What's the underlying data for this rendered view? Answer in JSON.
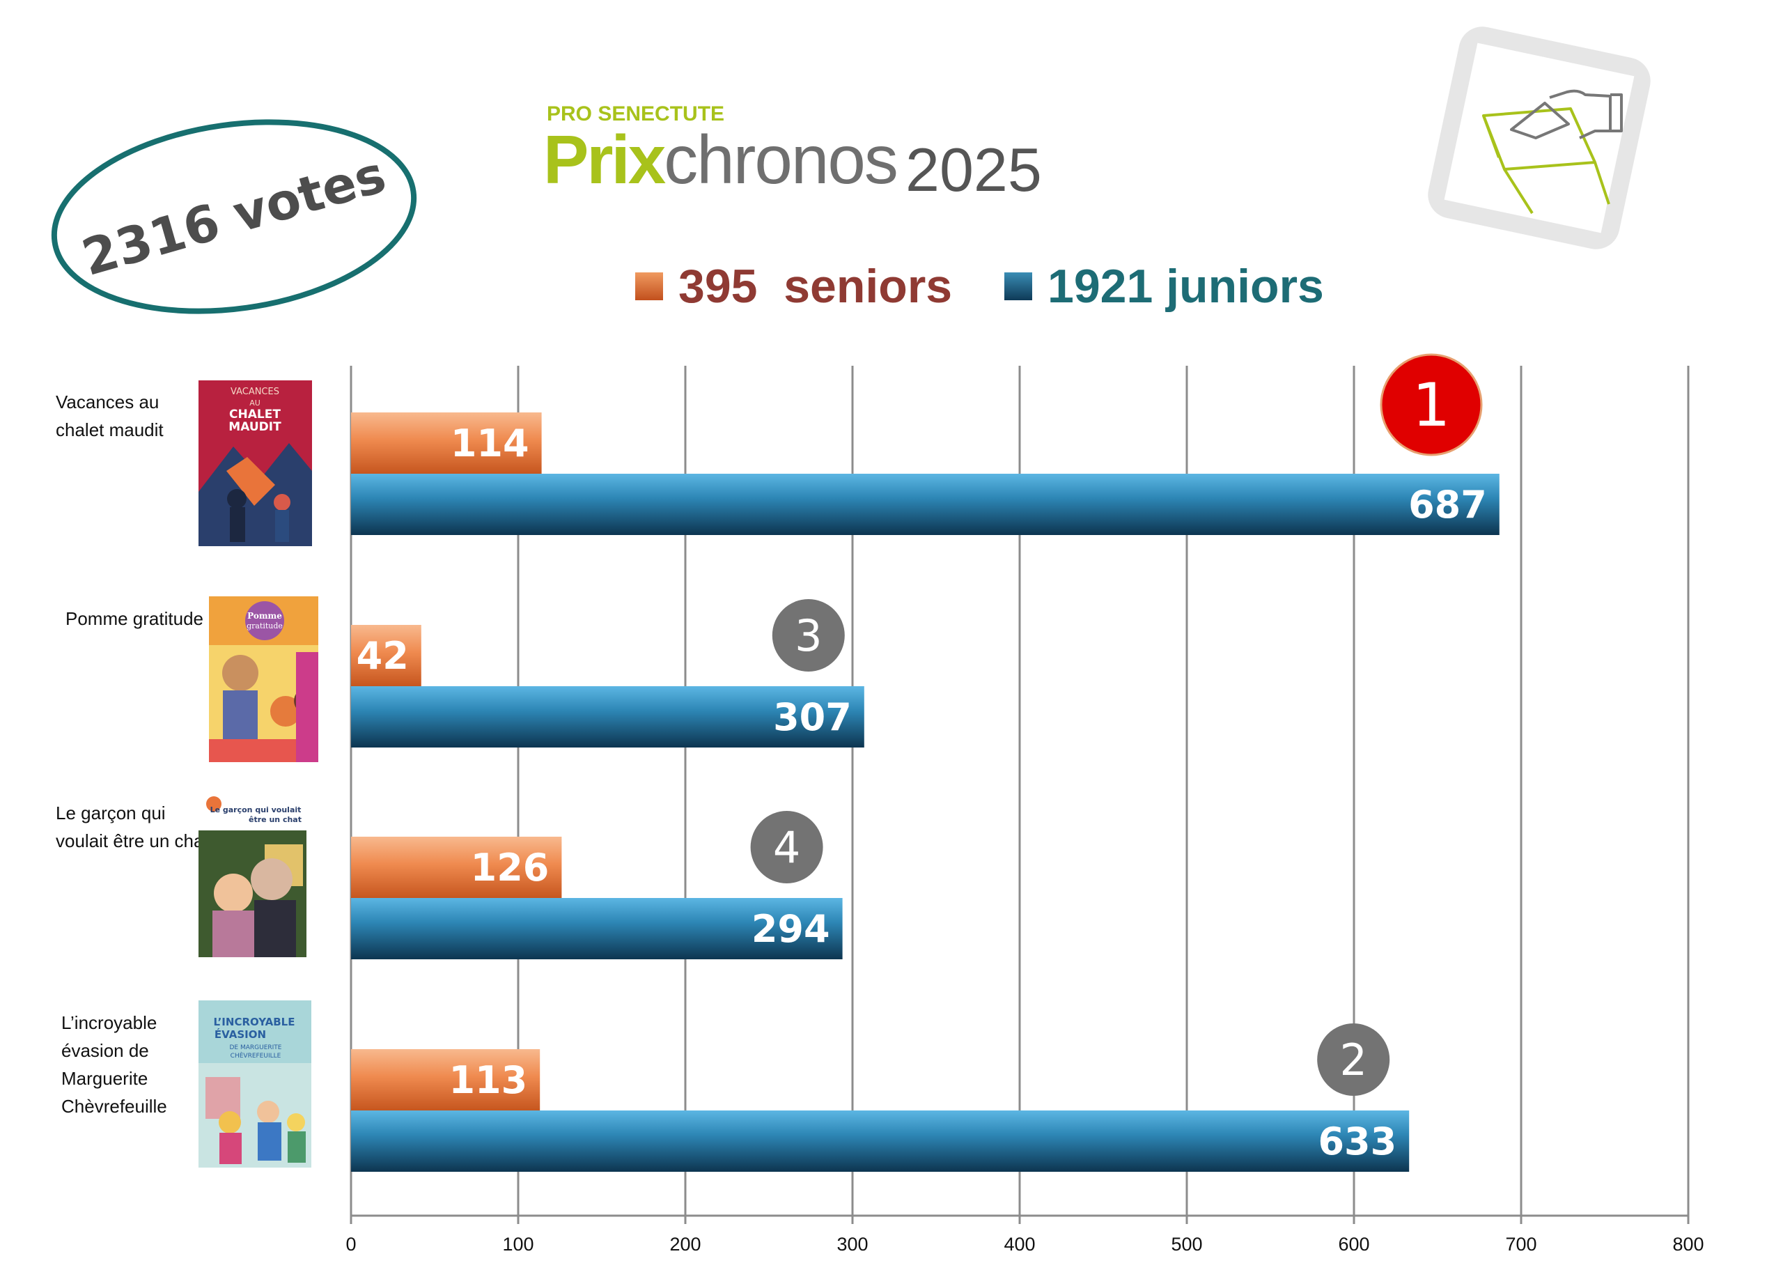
{
  "brand": {
    "top_label": "PRO SENECTUTE",
    "name_part1": "Prix",
    "name_part2": "chronos",
    "year": "2025"
  },
  "total_votes": "2316 votes",
  "legend": {
    "seniors": "395  seniors",
    "juniors": "1921 juniors"
  },
  "colors": {
    "seniors": "#e36c2d",
    "juniors": "#1a5f86",
    "brand_green": "#a8c21b",
    "rank_first": "#e00000",
    "rank_other": "#737373",
    "badge_ring": "#176f6f"
  },
  "books": [
    {
      "title": "Vacances au chalet maudit",
      "cover_text": "VACANCES AU CHALET MAUDIT"
    },
    {
      "title": "Pomme gratitude",
      "cover_text": "Pomme gratitude"
    },
    {
      "title": "Le garçon qui voulait être un chat",
      "cover_text": "Le garçon qui voulait être un chat"
    },
    {
      "title": "L’incroyable évasion de Marguerite Chèvrefeuille",
      "cover_text": "L’INCROYABLE ÉVASION DE MARGUERITE CHÈVREFEUILLE"
    }
  ],
  "chart_data": {
    "type": "bar",
    "orientation": "horizontal",
    "categories": [
      "Vacances au chalet maudit",
      "Pomme gratitude",
      "Le garçon qui voulait être un chat",
      "L’incroyable évasion de Marguerite Chèvrefeuille"
    ],
    "series": [
      {
        "name": "395  seniors",
        "values": [
          114,
          42,
          126,
          113
        ]
      },
      {
        "name": "1921 juniors",
        "values": [
          687,
          307,
          294,
          633
        ]
      }
    ],
    "ranks": [
      "1",
      "3",
      "4",
      "2"
    ],
    "xlim": [
      0,
      800
    ],
    "xticks": [
      "0",
      "100",
      "200",
      "300",
      "400",
      "500",
      "600",
      "700",
      "800"
    ],
    "grid": true,
    "legend_position": "top"
  }
}
